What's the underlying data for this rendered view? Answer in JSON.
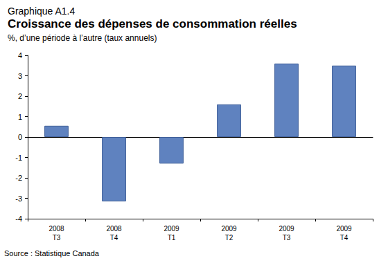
{
  "chart_data": {
    "type": "bar",
    "header": "Graphique A1.4",
    "title": "Croissance des dépenses de consommation réelles",
    "subtitle": "%, d’une période à l’autre (taux annuels)",
    "source": "Source : Statistique Canada",
    "categories": [
      "2008\nT3",
      "2008\nT4",
      "2009\nT1",
      "2009\nT2",
      "2009\nT3",
      "2009\nT4"
    ],
    "values": [
      0.55,
      -3.15,
      -1.3,
      1.6,
      3.6,
      3.5
    ],
    "color": "#5f82bf",
    "ylim": [
      -4,
      4
    ],
    "yticks": [
      -4,
      -3,
      -2,
      -1,
      0,
      1,
      2,
      3,
      4
    ],
    "grid": false
  }
}
